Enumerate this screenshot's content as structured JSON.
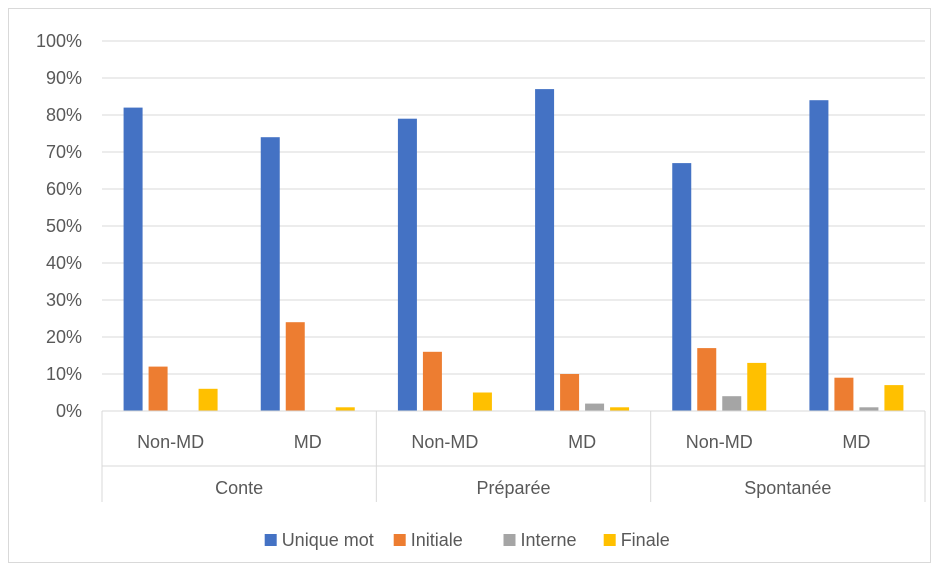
{
  "chart_data": {
    "type": "bar",
    "groups": [
      "Conte",
      "Préparée",
      "Spontanée"
    ],
    "subcategories": [
      "Non-MD",
      "MD"
    ],
    "categories": [
      "Conte / Non-MD",
      "Conte / MD",
      "Préparée / Non-MD",
      "Préparée / MD",
      "Spontanée / Non-MD",
      "Spontanée / MD"
    ],
    "series": [
      {
        "name": "Unique mot",
        "color": "#4472C4",
        "values": [
          82,
          74,
          79,
          87,
          67,
          84
        ]
      },
      {
        "name": "Initiale",
        "color": "#ED7D31",
        "values": [
          12,
          24,
          16,
          10,
          17,
          9
        ]
      },
      {
        "name": "Interne",
        "color": "#A5A5A5",
        "values": [
          0,
          0,
          0,
          2,
          4,
          1
        ]
      },
      {
        "name": "Finale",
        "color": "#FFC000",
        "values": [
          6,
          1,
          5,
          1,
          13,
          7
        ]
      }
    ],
    "ylim": [
      0,
      100
    ],
    "yticks": [
      "0%",
      "10%",
      "20%",
      "30%",
      "40%",
      "50%",
      "60%",
      "70%",
      "80%",
      "90%",
      "100%"
    ],
    "grid": true,
    "legend": "bottom",
    "title": "",
    "xlabel": "",
    "ylabel": ""
  }
}
